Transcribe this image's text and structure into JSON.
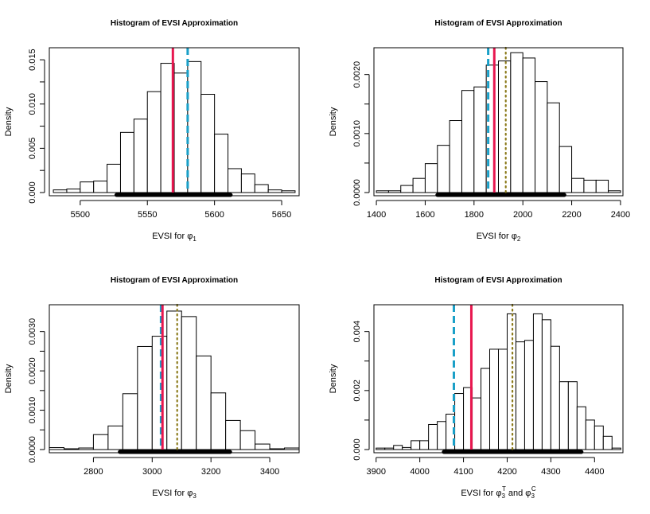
{
  "chart_data": [
    {
      "type": "bar",
      "title": "Histogram of EVSI Approximation",
      "xlabel_parts": [
        "EVSI for ",
        "φ",
        "1"
      ],
      "ylabel": "Density",
      "xlim": [
        5477,
        5663
      ],
      "ylim": [
        0,
        0.016
      ],
      "xticks": [
        5500,
        5550,
        5600,
        5650
      ],
      "yticks": [
        0.0,
        0.005,
        0.01,
        0.015
      ],
      "ytick_labels": [
        "0.000",
        "0.005",
        "0.010",
        "0.015"
      ],
      "bins": [
        [
          5480,
          5490,
          0.0003
        ],
        [
          5490,
          5500,
          0.0004
        ],
        [
          5500,
          5510,
          0.0012
        ],
        [
          5510,
          5520,
          0.0013
        ],
        [
          5520,
          5530,
          0.0032
        ],
        [
          5530,
          5540,
          0.0068
        ],
        [
          5540,
          5550,
          0.0083
        ],
        [
          5550,
          5560,
          0.0114
        ],
        [
          5560,
          5570,
          0.0146
        ],
        [
          5570,
          5580,
          0.0135
        ],
        [
          5580,
          5590,
          0.0148
        ],
        [
          5590,
          5600,
          0.0111
        ],
        [
          5600,
          5610,
          0.0066
        ],
        [
          5610,
          5620,
          0.0027
        ],
        [
          5620,
          5630,
          0.0021
        ],
        [
          5630,
          5640,
          0.0009
        ],
        [
          5640,
          5650,
          0.0003
        ],
        [
          5650,
          5660,
          0.0002
        ]
      ],
      "lines": [
        {
          "type": "solid",
          "color": "#e8174f",
          "x": 5569
        },
        {
          "type": "dashed",
          "color": "#1aa0c8",
          "x": 5580
        }
      ],
      "interval": [
        5527,
        5612
      ]
    },
    {
      "type": "bar",
      "title": "Histogram of EVSI Approximation",
      "xlabel_parts": [
        "EVSI for ",
        "φ",
        "2"
      ],
      "ylabel": "Density",
      "xlim": [
        1390,
        2410
      ],
      "ylim": [
        0,
        0.0024
      ],
      "xticks": [
        1400,
        1600,
        1800,
        2000,
        2200,
        2400
      ],
      "yticks": [
        0.0,
        0.001,
        0.002
      ],
      "ytick_labels": [
        "0.0000",
        "0.0010",
        "0.0020"
      ],
      "bins": [
        [
          1400,
          1450,
          3e-05
        ],
        [
          1450,
          1500,
          3e-05
        ],
        [
          1500,
          1550,
          0.00012
        ],
        [
          1550,
          1600,
          0.00024
        ],
        [
          1600,
          1650,
          0.00049
        ],
        [
          1650,
          1700,
          0.0008
        ],
        [
          1700,
          1750,
          0.00122
        ],
        [
          1750,
          1800,
          0.00173
        ],
        [
          1800,
          1850,
          0.00179
        ],
        [
          1850,
          1900,
          0.00216
        ],
        [
          1900,
          1950,
          0.00223
        ],
        [
          1950,
          2000,
          0.00237
        ],
        [
          2000,
          2050,
          0.00228
        ],
        [
          2050,
          2100,
          0.00188
        ],
        [
          2100,
          2150,
          0.00152
        ],
        [
          2150,
          2200,
          0.00078
        ],
        [
          2200,
          2250,
          0.00024
        ],
        [
          2250,
          2300,
          0.00021
        ],
        [
          2300,
          2350,
          0.00021
        ],
        [
          2350,
          2400,
          3e-05
        ]
      ],
      "lines": [
        {
          "type": "dashed",
          "color": "#1aa0c8",
          "x": 1858
        },
        {
          "type": "solid",
          "color": "#e8174f",
          "x": 1883
        },
        {
          "type": "dotted",
          "color": "#8b7a1a",
          "x": 1930
        }
      ],
      "interval": [
        1650,
        2170
      ]
    },
    {
      "type": "bar",
      "title": "Histogram of EVSI Approximation",
      "xlabel_parts": [
        "EVSI for ",
        "φ",
        "3"
      ],
      "ylabel": "Density",
      "xlim": [
        2650,
        3500
      ],
      "ylim": [
        0,
        0.0036
      ],
      "xticks": [
        2800,
        3000,
        3200,
        3400
      ],
      "yticks": [
        0.0,
        0.001,
        0.002,
        0.003
      ],
      "ytick_labels": [
        "0.0000",
        "0.0010",
        "0.0020",
        "0.0030"
      ],
      "bins": [
        [
          2650,
          2700,
          5e-05
        ],
        [
          2700,
          2750,
          2e-05
        ],
        [
          2750,
          2800,
          4e-05
        ],
        [
          2800,
          2850,
          0.00038
        ],
        [
          2850,
          2900,
          0.0006
        ],
        [
          2900,
          2950,
          0.00142
        ],
        [
          2950,
          3000,
          0.00262
        ],
        [
          3000,
          3050,
          0.00288
        ],
        [
          3050,
          3100,
          0.00352
        ],
        [
          3100,
          3150,
          0.00338
        ],
        [
          3150,
          3200,
          0.00238
        ],
        [
          3200,
          3250,
          0.00144
        ],
        [
          3250,
          3300,
          0.00074
        ],
        [
          3300,
          3350,
          0.00048
        ],
        [
          3350,
          3400,
          0.00014
        ],
        [
          3400,
          3450,
          2e-05
        ],
        [
          3450,
          3500,
          4e-05
        ]
      ],
      "lines": [
        {
          "type": "dashed",
          "color": "#1aa0c8",
          "x": 3030
        },
        {
          "type": "solid",
          "color": "#e8174f",
          "x": 3035
        },
        {
          "type": "dotted",
          "color": "#8b7a1a",
          "x": 3085
        }
      ],
      "interval": [
        2890,
        3265
      ]
    },
    {
      "type": "bar",
      "title": "Histogram of EVSI Approximation",
      "xlabel_parts": [
        "EVSI for ",
        "φ",
        "3",
        "T",
        " and ",
        "φ",
        "3",
        "C"
      ],
      "ylabel": "Density",
      "xlim": [
        3895,
        4465
      ],
      "ylim": [
        0,
        0.0048
      ],
      "xticks": [
        3900,
        4000,
        4100,
        4200,
        4300,
        4400
      ],
      "yticks": [
        0.0,
        0.002,
        0.004
      ],
      "ytick_labels": [
        "0.000",
        "0.002",
        "0.004"
      ],
      "bins": [
        [
          3900,
          3920,
          5e-05
        ],
        [
          3920,
          3940,
          5e-05
        ],
        [
          3940,
          3960,
          0.00014
        ],
        [
          3960,
          3980,
          7e-05
        ],
        [
          3980,
          4000,
          0.0003
        ],
        [
          4000,
          4020,
          0.0003
        ],
        [
          4020,
          4040,
          0.00085
        ],
        [
          4040,
          4060,
          0.00095
        ],
        [
          4060,
          4080,
          0.0012
        ],
        [
          4080,
          4100,
          0.0019
        ],
        [
          4100,
          4120,
          0.0021
        ],
        [
          4120,
          4140,
          0.00175
        ],
        [
          4140,
          4160,
          0.00275
        ],
        [
          4160,
          4180,
          0.0034
        ],
        [
          4180,
          4200,
          0.0034
        ],
        [
          4200,
          4220,
          0.0046
        ],
        [
          4220,
          4240,
          0.00365
        ],
        [
          4240,
          4260,
          0.0037
        ],
        [
          4260,
          4280,
          0.0046
        ],
        [
          4280,
          4300,
          0.0044
        ],
        [
          4300,
          4320,
          0.0035
        ],
        [
          4320,
          4340,
          0.0023
        ],
        [
          4340,
          4360,
          0.0023
        ],
        [
          4360,
          4380,
          0.00145
        ],
        [
          4380,
          4400,
          0.001
        ],
        [
          4400,
          4420,
          0.0008
        ],
        [
          4420,
          4440,
          0.00045
        ],
        [
          4440,
          4460,
          5e-05
        ]
      ],
      "lines": [
        {
          "type": "dashed",
          "color": "#1aa0c8",
          "x": 4078
        },
        {
          "type": "solid",
          "color": "#e8174f",
          "x": 4118
        },
        {
          "type": "dotted",
          "color": "#8b7a1a",
          "x": 4212
        }
      ],
      "interval": [
        4055,
        4370
      ]
    }
  ]
}
